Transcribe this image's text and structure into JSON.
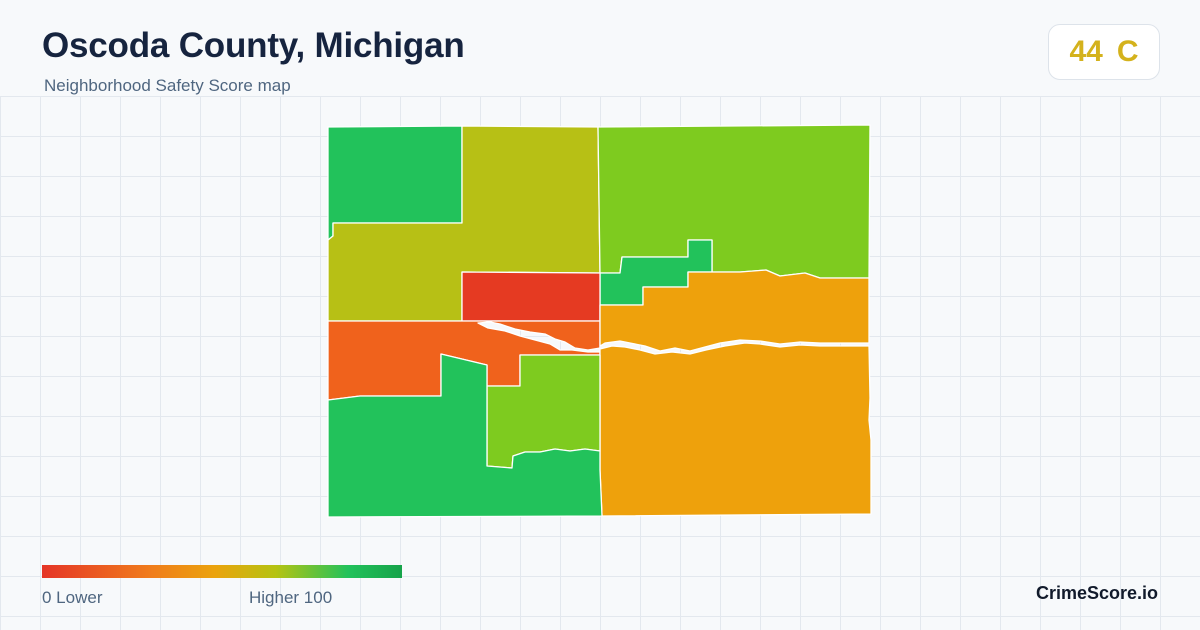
{
  "header": {
    "title": "Oscoda County, Michigan",
    "subtitle": "Neighborhood Safety Score map"
  },
  "score": {
    "value": "44",
    "grade": "C",
    "color": "#d4b21c"
  },
  "legend": {
    "min_label": "0  Lower",
    "max_label": "Higher  100",
    "colors": [
      "#e53527",
      "#f07c1c",
      "#eba30d",
      "#b5c312",
      "#22c25b",
      "#16a34a"
    ]
  },
  "brand": "CrimeScore.io",
  "regions": [
    {
      "name": "northwest",
      "color": "#22c25b"
    },
    {
      "name": "north-central",
      "color": "#b7c015"
    },
    {
      "name": "northeast",
      "color": "#7ecb1f"
    },
    {
      "name": "center-north-small",
      "color": "#22c25b"
    },
    {
      "name": "center",
      "color": "#e53a22"
    },
    {
      "name": "west-middle",
      "color": "#f0621c"
    },
    {
      "name": "east",
      "color": "#eea10c"
    },
    {
      "name": "south-central",
      "color": "#7ecb1f"
    },
    {
      "name": "southwest",
      "color": "#22c25b"
    }
  ]
}
